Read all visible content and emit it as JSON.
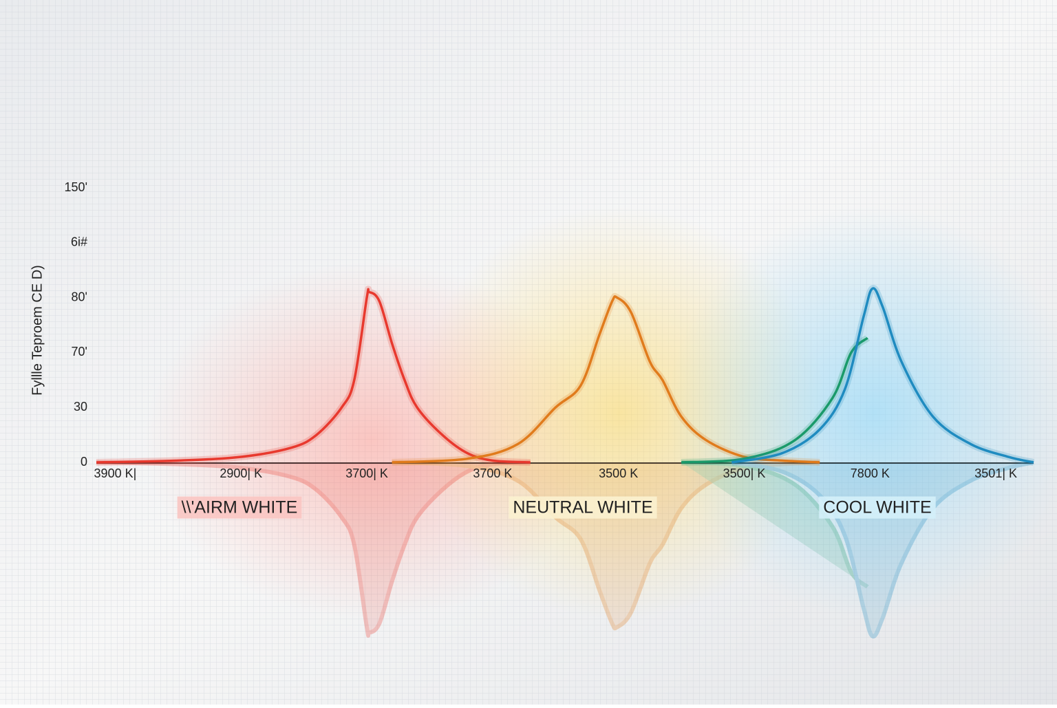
{
  "chart_data": {
    "type": "line",
    "y_label": "Fyllle Teproem CE D)",
    "categories": [
      "3900 K|",
      "2900| K",
      "3700| K",
      "3700 K",
      "3500 K",
      "3500| K",
      "7800 K",
      "3501| K"
    ],
    "xlim": [
      -0.15,
      7.3
    ],
    "ylim": [
      0,
      150
    ],
    "yticks": [
      0,
      30,
      {
        "value": 60,
        "label": "70'"
      },
      {
        "value": 90,
        "label": "80'"
      },
      {
        "value": 120,
        "label": "6i#"
      },
      {
        "value": 150,
        "label": "150'"
      }
    ],
    "series": [
      {
        "name": "\\\\'AIRM WHITE",
        "color": "#e8392e",
        "x": [
          -0.15,
          0.5,
          1,
          1.4,
          1.6,
          1.8,
          1.9,
          2.0,
          2.02,
          2.1,
          2.2,
          2.3,
          2.4,
          2.6,
          2.8,
          3.0,
          3.3
        ],
        "values": [
          0,
          1,
          3,
          8,
          15,
          30,
          45,
          90,
          93,
          88,
          65,
          45,
          30,
          15,
          5,
          1,
          0
        ]
      },
      {
        "name": "NEUTRAL WHITE",
        "color": "#e07b1c",
        "x": [
          2.2,
          2.8,
          3.2,
          3.5,
          3.7,
          3.85,
          3.95,
          3.99,
          4.1,
          4.25,
          4.35,
          4.5,
          4.7,
          5.0,
          5.3,
          5.6
        ],
        "values": [
          0,
          2,
          10,
          30,
          42,
          70,
          88,
          90,
          82,
          55,
          45,
          25,
          12,
          3,
          1,
          0
        ]
      },
      {
        "color": "#1a9a6a",
        "x": [
          4.5,
          5.0,
          5.4,
          5.7,
          5.85,
          5.98
        ],
        "values": [
          0,
          2,
          12,
          35,
          60,
          68
        ]
      },
      {
        "name": "COOL WHITE",
        "color": "#1f8bc0",
        "x": [
          4.9,
          5.3,
          5.6,
          5.8,
          5.95,
          6.02,
          6.1,
          6.25,
          6.5,
          6.8,
          7.1,
          7.3
        ],
        "values": [
          0,
          5,
          18,
          40,
          80,
          95,
          85,
          55,
          25,
          10,
          3,
          0
        ]
      }
    ]
  }
}
